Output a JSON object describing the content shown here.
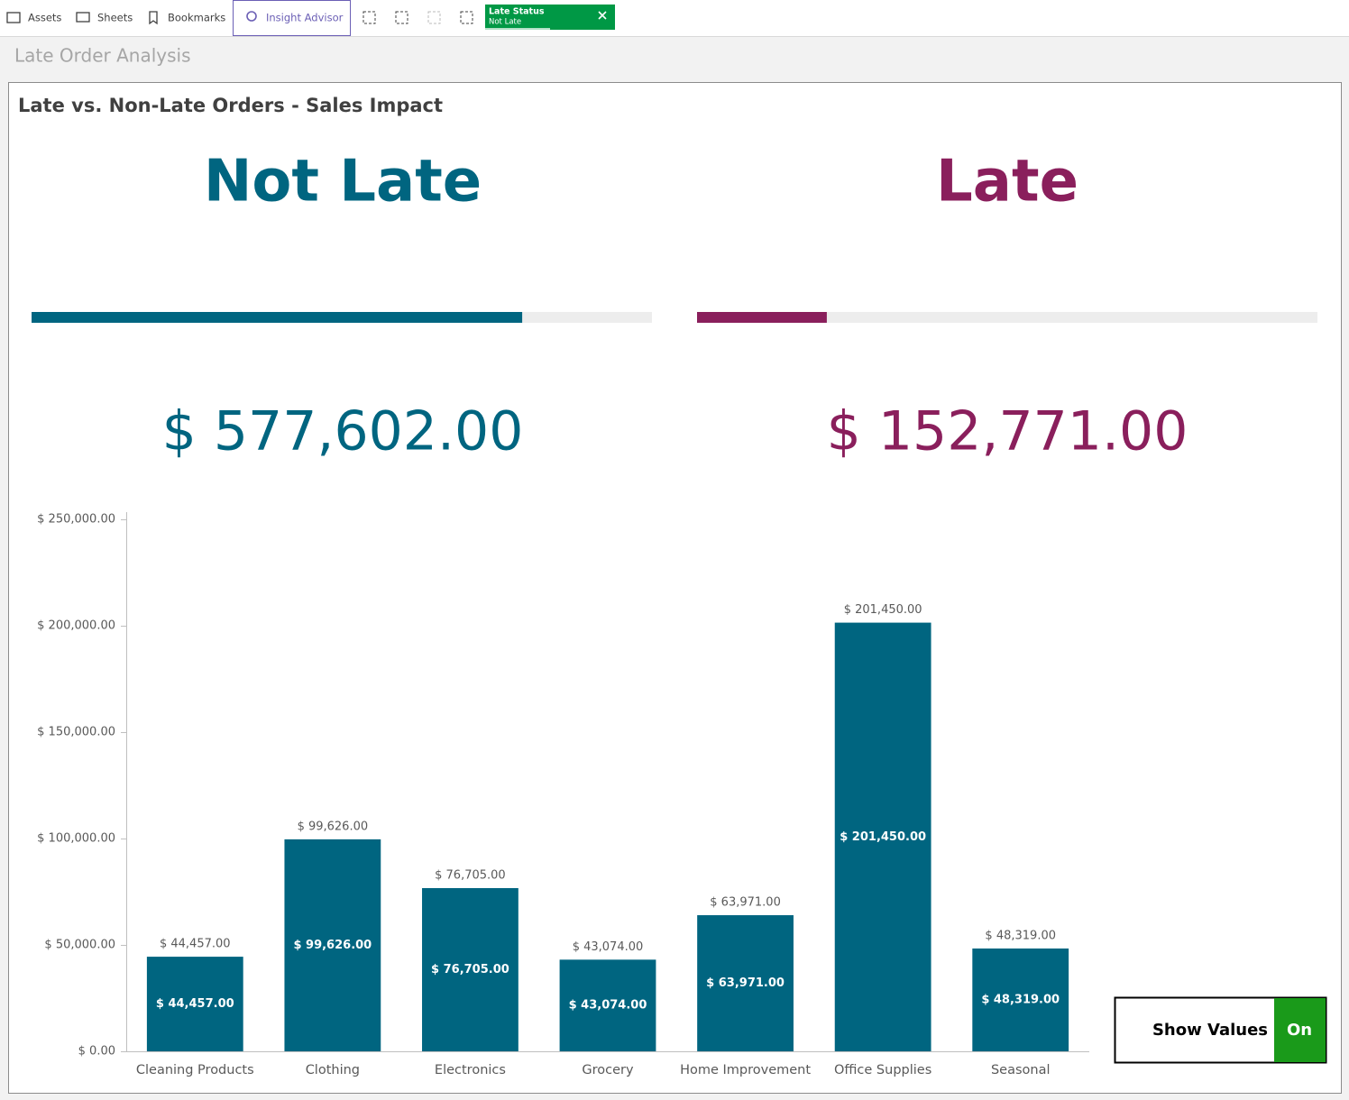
{
  "toolbar": {
    "items": [
      "Assets",
      "Sheets",
      "Bookmarks",
      "Insight Advisor"
    ],
    "selection": {
      "field": "Late Status",
      "value": "Not Late"
    }
  },
  "sheet_title": "Late Order Analysis",
  "panel_title": "Late vs. Non-Late Orders - Sales Impact",
  "kpis": [
    {
      "label": "Not Late",
      "value": 577602,
      "value_label": "$ 577,602.00",
      "color": "#006580"
    },
    {
      "label": "Late",
      "value": 152771,
      "value_label": "$ 152,771.00",
      "color": "#8a1f5c"
    }
  ],
  "chart_data": {
    "type": "bar",
    "categories": [
      "Cleaning Products",
      "Clothing",
      "Electronics",
      "Grocery",
      "Home Improvement",
      "Office Supplies",
      "Seasonal"
    ],
    "values": [
      44457,
      99626,
      76705,
      43074,
      63971,
      201450,
      48319
    ],
    "value_labels": [
      "$ 44,457.00",
      "$ 99,626.00",
      "$ 76,705.00",
      "$ 43,074.00",
      "$ 63,971.00",
      "$ 201,450.00",
      "$ 48,319.00"
    ],
    "color": "#006580",
    "ylim": [
      0,
      250000
    ],
    "yticks": [
      {
        "value": 0,
        "label": "$ 0.00"
      },
      {
        "value": 50000,
        "label": "$ 50,000.00"
      },
      {
        "value": 100000,
        "label": "$ 100,000.00"
      },
      {
        "value": 150000,
        "label": "$ 150,000.00"
      },
      {
        "value": 200000,
        "label": "$ 200,000.00"
      },
      {
        "value": 250000,
        "label": "$ 250,000.00"
      }
    ]
  },
  "toggle": {
    "label": "Show Values",
    "state": "On"
  }
}
